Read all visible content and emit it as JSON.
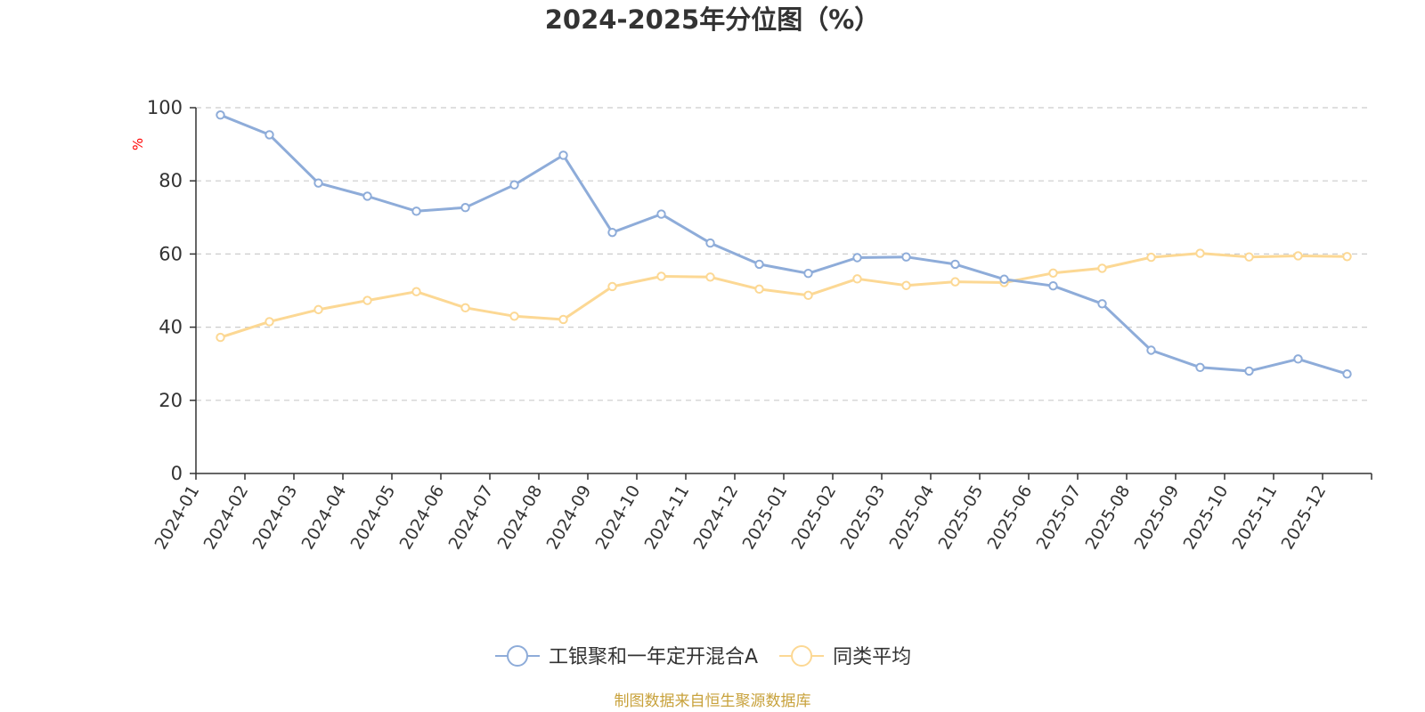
{
  "chart_data": {
    "type": "line",
    "title": "2024-2025年分位图（%）",
    "ylabel": "%",
    "xlabel": "",
    "ylim": [
      0,
      100
    ],
    "yticks": [
      0,
      20,
      40,
      60,
      80,
      100
    ],
    "grid": "horizontal dashed",
    "legend_position": "bottom-center",
    "categories": [
      "2024-01",
      "2024-02",
      "2024-03",
      "2024-04",
      "2024-05",
      "2024-06",
      "2024-07",
      "2024-08",
      "2024-09",
      "2024-10",
      "2024-11",
      "2024-12",
      "2025-01",
      "2025-02",
      "2025-03",
      "2025-04",
      "2025-05",
      "2025-06",
      "2025-07",
      "2025-08",
      "2025-09",
      "2025-10",
      "2025-11",
      "2025-12"
    ],
    "series": [
      {
        "name": "工银聚和一年定开混合A",
        "color": "#8eacd9",
        "values": [
          98.0,
          92.6,
          79.4,
          75.8,
          71.7,
          72.7,
          78.9,
          87.0,
          65.9,
          70.9,
          63.0,
          57.2,
          54.7,
          59.0,
          59.2,
          57.2,
          53.1,
          51.3,
          46.4,
          33.7,
          29.0,
          28.0,
          31.3,
          27.2
        ]
      },
      {
        "name": "同类平均",
        "color": "#fcd894",
        "values": [
          37.2,
          41.5,
          44.8,
          47.3,
          49.7,
          45.3,
          43.0,
          42.1,
          51.1,
          53.9,
          53.7,
          50.4,
          48.7,
          53.2,
          51.4,
          52.4,
          52.2,
          54.8,
          56.1,
          59.1,
          60.2,
          59.2,
          59.5,
          59.3
        ]
      }
    ]
  },
  "source": {
    "text": "制图数据来自恒生聚源数据库",
    "color": "#c8a23c"
  }
}
